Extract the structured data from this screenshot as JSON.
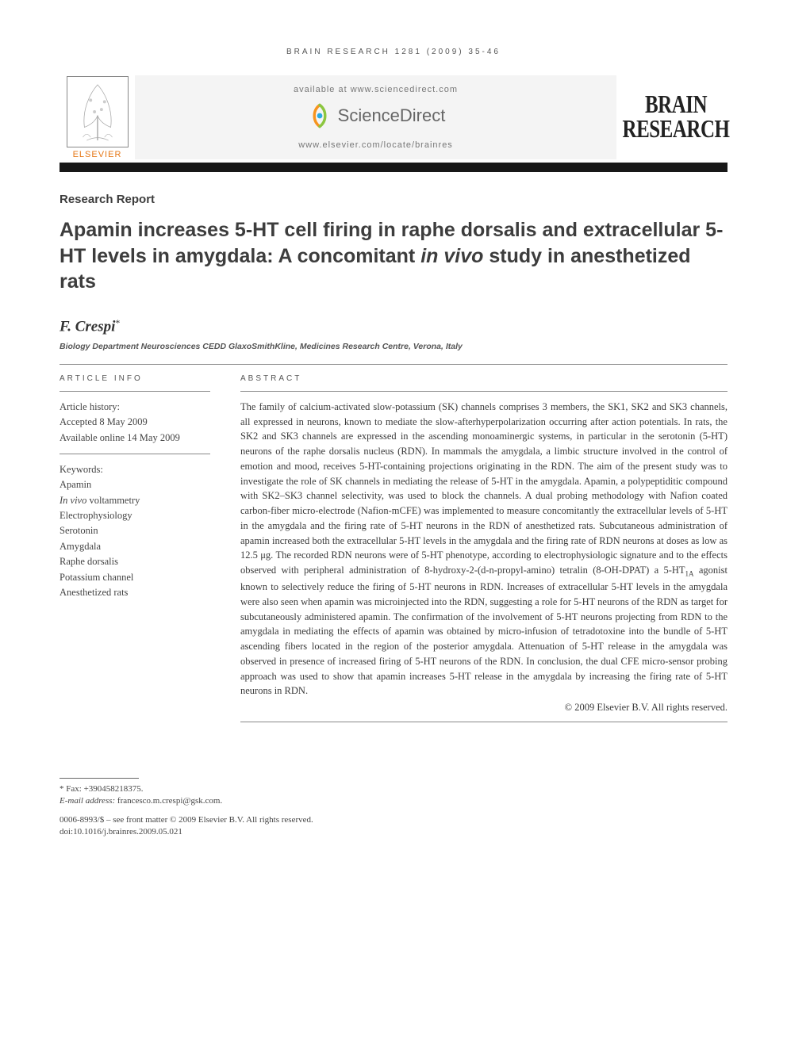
{
  "running_head": "BRAIN RESEARCH 1281 (2009) 35-46",
  "header": {
    "publisher_name": "ELSEVIER",
    "available_text": "available at www.sciencedirect.com",
    "sd_brand": "ScienceDirect",
    "journal_url": "www.elsevier.com/locate/brainres",
    "journal_name_line1": "BRAIN",
    "journal_name_line2": "RESEARCH"
  },
  "article_type": "Research Report",
  "title_parts": {
    "pre": "Apamin increases 5-HT cell firing in raphe dorsalis and extracellular 5-HT levels in amygdala: A concomitant ",
    "ital": "in vivo",
    "post": " study in anesthetized rats"
  },
  "author": "F. Crespi",
  "author_marker": "*",
  "affiliation": "Biology Department Neurosciences CEDD GlaxoSmithKline, Medicines Research Centre, Verona, Italy",
  "article_info": {
    "heading": "ARTICLE INFO",
    "history_label": "Article history:",
    "accepted": "Accepted 8 May 2009",
    "available": "Available online 14 May 2009",
    "keywords_label": "Keywords:",
    "keywords": [
      {
        "text": "Apamin"
      },
      {
        "pre": "",
        "ital": "In vivo",
        "post": " voltammetry"
      },
      {
        "text": "Electrophysiology"
      },
      {
        "text": "Serotonin"
      },
      {
        "text": "Amygdala"
      },
      {
        "text": "Raphe dorsalis"
      },
      {
        "text": "Potassium channel"
      },
      {
        "text": "Anesthetized rats"
      }
    ]
  },
  "abstract": {
    "heading": "ABSTRACT",
    "body": "The family of calcium-activated slow-potassium (SK) channels comprises 3 members, the SK1, SK2 and SK3 channels, all expressed in neurons, known to mediate the slow-afterhyperpolarization occurring after action potentials. In rats, the SK2 and SK3 channels are expressed in the ascending monoaminergic systems, in particular in the serotonin (5-HT) neurons of the raphe dorsalis nucleus (RDN). In mammals the amygdala, a limbic structure involved in the control of emotion and mood, receives 5-HT-containing projections originating in the RDN. The aim of the present study was to investigate the role of SK channels in mediating the release of 5-HT in the amygdala. Apamin, a polypeptiditic compound with SK2–SK3 channel selectivity, was used to block the channels. A dual probing methodology with Nafion coated carbon-fiber micro-electrode (Nafion-mCFE) was implemented to measure concomitantly the extracellular levels of 5-HT in the amygdala and the firing rate of 5-HT neurons in the RDN of anesthetized rats. Subcutaneous administration of apamin increased both the extracellular 5-HT levels in the amygdala and the firing rate of RDN neurons at doses as low as 12.5 μg. The recorded RDN neurons were of 5-HT phenotype, according to electrophysiologic signature and to the effects observed with peripheral administration of 8-hydroxy-2-(d-n-propyl-amino) tetralin (8-OH-DPAT) a 5-HT<SUB>1A</SUB> agonist known to selectively reduce the firing of 5-HT neurons in RDN. Increases of extracellular 5-HT levels in the amygdala were also seen when apamin was microinjected into the RDN, suggesting a role for 5-HT neurons of the RDN as target for subcutaneously administered apamin. The confirmation of the involvement of 5-HT neurons projecting from RDN to the amygdala in mediating the effects of apamin was obtained by micro-infusion of tetradotoxine into the bundle of 5-HT ascending fibers located in the region of the posterior amygdala. Attenuation of 5-HT release in the amygdala was observed in presence of increased firing of 5-HT neurons of the RDN. In conclusion, the dual CFE micro-sensor probing approach was used to show that apamin increases 5-HT release in the amygdala by increasing the firing rate of 5-HT neurons in RDN.",
    "copyright": "© 2009 Elsevier B.V. All rights reserved."
  },
  "footnotes": {
    "fax_label": "* Fax: ",
    "fax": "+390458218375.",
    "email_label": "E-mail address:",
    "email": "francesco.m.crespi@gsk.com."
  },
  "doi_block": {
    "line1": "0006-8993/$ – see front matter © 2009 Elsevier B.V. All rights reserved.",
    "line2": "doi:10.1016/j.brainres.2009.05.021"
  },
  "colors": {
    "elsevier_orange": "#e67817",
    "sd_orange": "#f7941e",
    "sd_green": "#8cc63f",
    "sd_blue": "#29abe2",
    "panel_bg": "#f4f4f4",
    "bar": "#181818"
  }
}
